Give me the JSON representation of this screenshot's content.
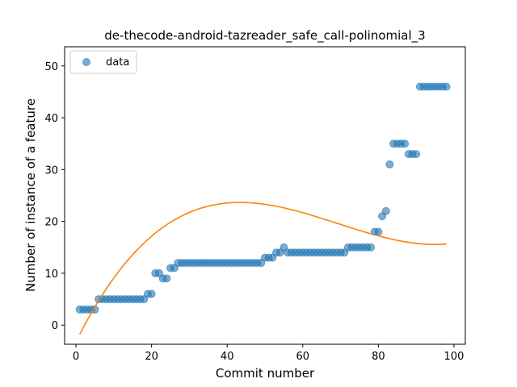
{
  "chart_data": {
    "type": "scatter",
    "title": "de-thecode-android-tazreader_safe_call-polinomial_3",
    "xlabel": "Commit number",
    "ylabel": "Number of instance of a feature",
    "xlim": [
      -3,
      103
    ],
    "ylim": [
      -3.7,
      53.7
    ],
    "xticks": [
      0,
      20,
      40,
      60,
      80,
      100
    ],
    "yticks": [
      0,
      10,
      20,
      30,
      40,
      50
    ],
    "grid": false,
    "legend": {
      "placement": "top-left",
      "entries": [
        "data"
      ]
    },
    "colors": {
      "points": "#1f77b4",
      "fit": "#ff7f0e"
    },
    "series": [
      {
        "name": "data",
        "kind": "scatter",
        "x": [
          1,
          2,
          3,
          4,
          5,
          6,
          7,
          8,
          9,
          10,
          11,
          12,
          13,
          14,
          15,
          16,
          17,
          18,
          19,
          20,
          21,
          22,
          23,
          24,
          25,
          26,
          27,
          28,
          29,
          30,
          31,
          32,
          33,
          34,
          35,
          36,
          37,
          38,
          39,
          40,
          41,
          42,
          43,
          44,
          45,
          46,
          47,
          48,
          49,
          50,
          51,
          52,
          53,
          54,
          55,
          56,
          57,
          58,
          59,
          60,
          61,
          62,
          63,
          64,
          65,
          66,
          67,
          68,
          69,
          70,
          71,
          72,
          73,
          74,
          75,
          76,
          77,
          78,
          79,
          80,
          81,
          82,
          83,
          84,
          85,
          86,
          87,
          88,
          89,
          90,
          91,
          92,
          93,
          94,
          95,
          96,
          97,
          98
        ],
        "y": [
          3,
          3,
          3,
          3,
          3,
          5,
          5,
          5,
          5,
          5,
          5,
          5,
          5,
          5,
          5,
          5,
          5,
          5,
          6,
          6,
          10,
          10,
          9,
          9,
          11,
          11,
          12,
          12,
          12,
          12,
          12,
          12,
          12,
          12,
          12,
          12,
          12,
          12,
          12,
          12,
          12,
          12,
          12,
          12,
          12,
          12,
          12,
          12,
          12,
          13,
          13,
          13,
          14,
          14,
          15,
          14,
          14,
          14,
          14,
          14,
          14,
          14,
          14,
          14,
          14,
          14,
          14,
          14,
          14,
          14,
          14,
          15,
          15,
          15,
          15,
          15,
          15,
          15,
          18,
          18,
          21,
          22,
          31,
          35,
          35,
          35,
          35,
          33,
          33,
          33,
          46,
          46,
          46,
          46,
          46,
          46,
          46,
          46
        ]
      },
      {
        "name": "",
        "kind": "line",
        "fit": "cubic",
        "x_range": [
          1,
          98
        ],
        "coefficients": [
          -3.2,
          1.46,
          -0.0245,
          0.000118
        ]
      }
    ]
  }
}
